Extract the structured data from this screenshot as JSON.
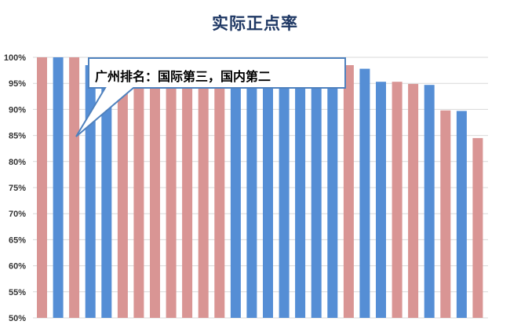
{
  "chart_data": {
    "type": "bar",
    "title": "实际正点率",
    "xlabel": "",
    "ylabel": "",
    "ylim": [
      50,
      100
    ],
    "ytick_labels": [
      "100%",
      "95%",
      "90%",
      "85%",
      "80%",
      "75%",
      "70%",
      "65%",
      "60%",
      "55%",
      "50%"
    ],
    "grid": true,
    "values": [
      100,
      100,
      100,
      98.5,
      98.5,
      98.5,
      98.5,
      98.5,
      98.5,
      98.5,
      98.5,
      98.5,
      98.5,
      98.5,
      98.5,
      98.5,
      98.5,
      98.5,
      98.5,
      98.5,
      97.8,
      95.3,
      95.3,
      94.9,
      94.7,
      89.8,
      89.7,
      84.5
    ],
    "bar_colors": [
      "pink",
      "blue",
      "pink",
      "blue",
      "blue",
      "pink",
      "pink",
      "pink",
      "pink",
      "pink",
      "pink",
      "pink",
      "blue",
      "blue",
      "blue",
      "blue",
      "blue",
      "blue",
      "blue",
      "pink",
      "blue",
      "blue",
      "pink",
      "pink",
      "blue",
      "pink",
      "blue",
      "pink"
    ],
    "colors": {
      "pink": "#d99594",
      "blue": "#558ed5",
      "callout_border": "#4f81bd"
    },
    "annotation": "广州排名：国际第三，国内第二"
  }
}
